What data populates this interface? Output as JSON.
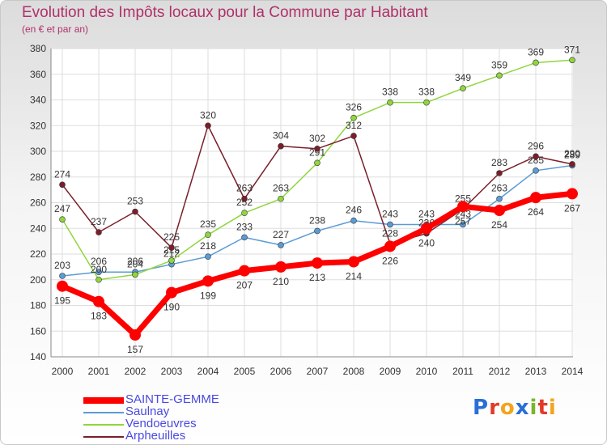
{
  "title": "Evolution des Impôts locaux pour la Commune par Habitant",
  "subtitle": "(en € et par an)",
  "logo": {
    "text": "Proxiti",
    "letters": [
      {
        "ch": "P",
        "color": "#2a6fd6"
      },
      {
        "ch": "r",
        "color": "#e23a2a"
      },
      {
        "ch": "o",
        "color": "#f2a51c"
      },
      {
        "ch": "x",
        "color": "#2a6fd6"
      },
      {
        "ch": "i",
        "color": "#7ab52a"
      },
      {
        "ch": "t",
        "color": "#e23a2a"
      },
      {
        "ch": "i",
        "color": "#f2a51c"
      }
    ]
  },
  "chart_data": {
    "type": "line",
    "title": "Evolution des Impôts locaux pour la Commune par Habitant",
    "xlabel": "",
    "ylabel": "",
    "x": [
      "2000",
      "2001",
      "2002",
      "2003",
      "2004",
      "2005",
      "2006",
      "2007",
      "2008",
      "2009",
      "2010",
      "2011",
      "2012",
      "2013",
      "2014"
    ],
    "ylim": [
      140,
      380
    ],
    "yticks": [
      140,
      160,
      180,
      200,
      220,
      240,
      260,
      280,
      300,
      320,
      340,
      360,
      380
    ],
    "grid": true,
    "legend_position": "bottom-left",
    "series": [
      {
        "name": "SAINTE-GEMME",
        "color": "#ff0000",
        "values": [
          195,
          183,
          157,
          190,
          199,
          207,
          210,
          213,
          214,
          226,
          240,
          257,
          254,
          264,
          267
        ]
      },
      {
        "name": "Saulnay",
        "color": "#5b9bd5",
        "values": [
          203,
          206,
          206,
          212,
          218,
          233,
          227,
          238,
          246,
          243,
          243,
          243,
          263,
          285,
          289
        ]
      },
      {
        "name": "Vendoeuvres",
        "color": "#8fd63e",
        "values": [
          247,
          200,
          204,
          215,
          235,
          252,
          263,
          291,
          326,
          338,
          338,
          349,
          359,
          369,
          371
        ]
      },
      {
        "name": "Arpheuilles",
        "color": "#7a1f2a",
        "values": [
          274,
          237,
          253,
          225,
          320,
          263,
          304,
          302,
          312,
          228,
          236,
          255,
          283,
          296,
          290
        ]
      }
    ]
  }
}
